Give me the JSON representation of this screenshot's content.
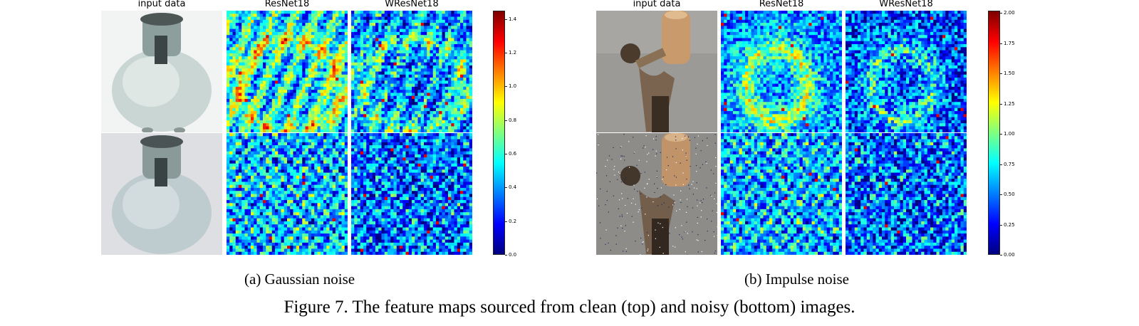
{
  "figure_caption": "Figure 7. The feature maps sourced from clean (top) and noisy (bottom) images.",
  "panels": [
    {
      "subcaption": "(a)  Gaussian noise",
      "columns": [
        "input data",
        "ResNet18",
        "WResNet18"
      ],
      "rows": [
        "clean",
        "noisy"
      ],
      "subject": "vase",
      "colorbar": {
        "ticks": [
          "0.0",
          "0.2",
          "0.4",
          "0.6",
          "0.8",
          "1.0",
          "1.2",
          "1.4"
        ],
        "min": 0.0,
        "max": 1.45
      }
    },
    {
      "subcaption": "(b)  Impulse noise",
      "columns": [
        "input data",
        "ResNet18",
        "WResNet18"
      ],
      "rows": [
        "clean",
        "noisy"
      ],
      "subject": "statue-with-vase",
      "colorbar": {
        "ticks": [
          "0.00",
          "0.25",
          "0.50",
          "0.75",
          "1.00",
          "1.25",
          "1.50",
          "1.75",
          "2.00"
        ],
        "min": 0.0,
        "max": 2.02
      }
    }
  ],
  "colormap": [
    "#00007f",
    "#0000ff",
    "#007fff",
    "#00ffff",
    "#7fff7f",
    "#ffff00",
    "#ff7f00",
    "#ff0000",
    "#7f0000"
  ]
}
